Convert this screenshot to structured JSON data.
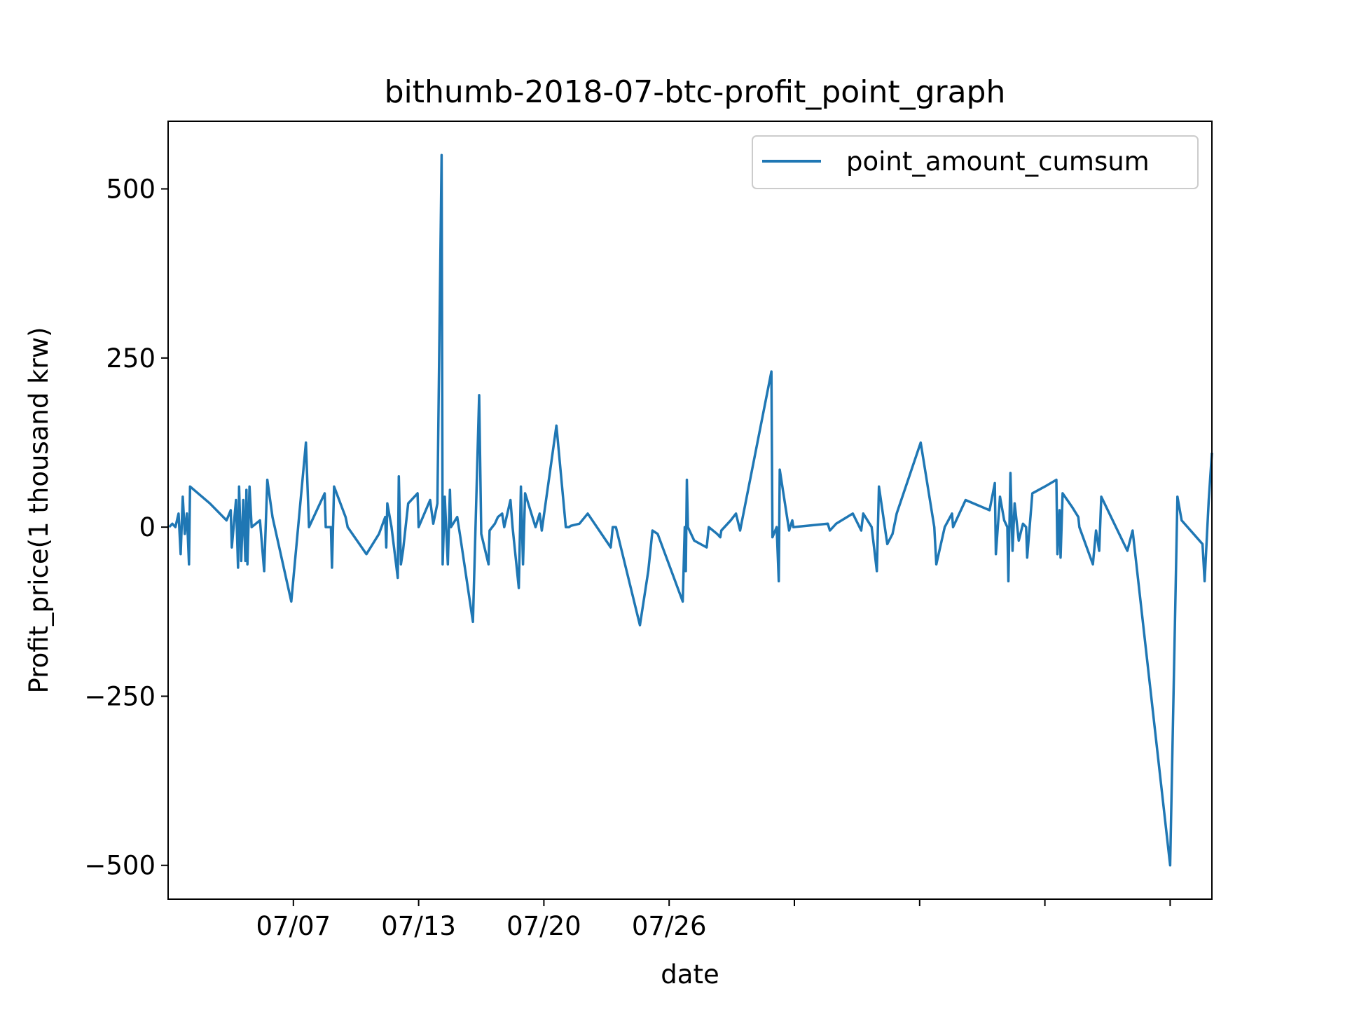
{
  "chart_data": {
    "type": "line",
    "title": "bithumb-2018-07-btc-profit_point_graph",
    "xlabel": "date",
    "ylabel": "Profit_price(1 thousand krw)",
    "x_range": [
      1,
      51
    ],
    "ylim": [
      -550,
      600
    ],
    "x_ticks": [
      {
        "x": 7,
        "label": "07/07"
      },
      {
        "x": 13,
        "label": "07/13"
      },
      {
        "x": 19,
        "label": "07/20"
      },
      {
        "x": 25,
        "label": "07/26"
      },
      {
        "x": 31,
        "label": ""
      },
      {
        "x": 37,
        "label": ""
      },
      {
        "x": 43,
        "label": ""
      },
      {
        "x": 49,
        "label": ""
      }
    ],
    "y_ticks": [
      {
        "y": 500,
        "label": "500"
      },
      {
        "y": 250,
        "label": "250"
      },
      {
        "y": 0,
        "label": "0"
      },
      {
        "y": -250,
        "label": "−250"
      },
      {
        "y": -500,
        "label": "−500"
      }
    ],
    "grid": false,
    "legend_position": "top-right",
    "series": [
      {
        "name": "point_amount_cumsum",
        "color": "#1f77b4",
        "points": [
          [
            1.05,
            0
          ],
          [
            1.2,
            5
          ],
          [
            1.35,
            0
          ],
          [
            1.5,
            20
          ],
          [
            1.6,
            -40
          ],
          [
            1.7,
            45
          ],
          [
            1.8,
            -10
          ],
          [
            1.9,
            20
          ],
          [
            2.0,
            -55
          ],
          [
            2.05,
            60
          ],
          [
            3.0,
            35
          ],
          [
            3.8,
            10
          ],
          [
            4.0,
            25
          ],
          [
            4.05,
            -30
          ],
          [
            4.25,
            40
          ],
          [
            4.35,
            -60
          ],
          [
            4.4,
            60
          ],
          [
            4.5,
            -50
          ],
          [
            4.6,
            40
          ],
          [
            4.7,
            -50
          ],
          [
            4.75,
            55
          ],
          [
            4.8,
            -55
          ],
          [
            4.9,
            60
          ],
          [
            5.0,
            0
          ],
          [
            5.4,
            10
          ],
          [
            5.6,
            -65
          ],
          [
            5.75,
            70
          ],
          [
            6.0,
            15
          ],
          [
            6.9,
            -110
          ],
          [
            7.6,
            125
          ],
          [
            7.75,
            0
          ],
          [
            8.5,
            50
          ],
          [
            8.55,
            0
          ],
          [
            8.8,
            0
          ],
          [
            8.85,
            -60
          ],
          [
            8.95,
            60
          ],
          [
            9.5,
            15
          ],
          [
            9.6,
            0
          ],
          [
            10.5,
            -40
          ],
          [
            11.1,
            -10
          ],
          [
            11.4,
            15
          ],
          [
            11.45,
            -30
          ],
          [
            11.5,
            35
          ],
          [
            11.7,
            0
          ],
          [
            12.0,
            -75
          ],
          [
            12.05,
            75
          ],
          [
            12.15,
            -55
          ],
          [
            12.25,
            -35
          ],
          [
            12.5,
            35
          ],
          [
            12.95,
            50
          ],
          [
            13.0,
            0
          ],
          [
            13.55,
            40
          ],
          [
            13.7,
            5
          ],
          [
            13.9,
            35
          ],
          [
            14.1,
            550
          ],
          [
            14.15,
            -55
          ],
          [
            14.25,
            45
          ],
          [
            14.4,
            -55
          ],
          [
            14.5,
            55
          ],
          [
            14.55,
            0
          ],
          [
            14.85,
            15
          ],
          [
            15.0,
            -15
          ],
          [
            15.6,
            -140
          ],
          [
            15.9,
            195
          ],
          [
            16.0,
            -10
          ],
          [
            16.35,
            -55
          ],
          [
            16.4,
            -5
          ],
          [
            16.65,
            5
          ],
          [
            16.8,
            15
          ],
          [
            17.0,
            20
          ],
          [
            17.1,
            0
          ],
          [
            17.4,
            40
          ],
          [
            17.5,
            0
          ],
          [
            17.8,
            -90
          ],
          [
            17.9,
            60
          ],
          [
            18.0,
            -55
          ],
          [
            18.1,
            50
          ],
          [
            18.6,
            0
          ],
          [
            18.8,
            20
          ],
          [
            18.9,
            -5
          ],
          [
            19.6,
            150
          ],
          [
            20.05,
            0
          ],
          [
            20.2,
            0
          ],
          [
            20.3,
            2
          ],
          [
            20.7,
            5
          ],
          [
            21.1,
            20
          ],
          [
            22.2,
            -30
          ],
          [
            22.3,
            0
          ],
          [
            22.45,
            0
          ],
          [
            23.6,
            -145
          ],
          [
            24.0,
            -65
          ],
          [
            24.2,
            -5
          ],
          [
            24.45,
            -10
          ],
          [
            25.65,
            -110
          ],
          [
            25.75,
            0
          ],
          [
            25.8,
            -65
          ],
          [
            25.85,
            70
          ],
          [
            25.9,
            0
          ],
          [
            26.2,
            -20
          ],
          [
            26.8,
            -30
          ],
          [
            26.9,
            0
          ],
          [
            27.3,
            -10
          ],
          [
            27.45,
            -15
          ],
          [
            27.5,
            -5
          ],
          [
            27.95,
            10
          ],
          [
            28.2,
            20
          ],
          [
            28.4,
            -5
          ],
          [
            29.9,
            230
          ],
          [
            29.95,
            -15
          ],
          [
            30.15,
            0
          ],
          [
            30.25,
            -80
          ],
          [
            30.3,
            85
          ],
          [
            30.75,
            -5
          ],
          [
            30.9,
            10
          ],
          [
            30.95,
            0
          ],
          [
            32.6,
            5
          ],
          [
            32.7,
            -5
          ],
          [
            33.0,
            5
          ],
          [
            33.8,
            20
          ],
          [
            34.2,
            -5
          ],
          [
            34.3,
            20
          ],
          [
            34.7,
            0
          ],
          [
            34.95,
            -65
          ],
          [
            35.05,
            60
          ],
          [
            35.45,
            -25
          ],
          [
            35.7,
            -10
          ],
          [
            35.9,
            20
          ],
          [
            37.05,
            125
          ],
          [
            37.7,
            0
          ],
          [
            37.8,
            -55
          ],
          [
            38.2,
            0
          ],
          [
            38.55,
            20
          ],
          [
            38.6,
            0
          ],
          [
            39.2,
            40
          ],
          [
            40.35,
            25
          ],
          [
            40.6,
            65
          ],
          [
            40.65,
            -40
          ],
          [
            40.85,
            45
          ],
          [
            41.05,
            10
          ],
          [
            41.2,
            0
          ],
          [
            41.25,
            -80
          ],
          [
            41.35,
            80
          ],
          [
            41.45,
            -35
          ],
          [
            41.55,
            35
          ],
          [
            41.75,
            -20
          ],
          [
            41.95,
            5
          ],
          [
            42.1,
            0
          ],
          [
            42.15,
            -45
          ],
          [
            42.4,
            50
          ],
          [
            43.0,
            60
          ],
          [
            43.55,
            70
          ],
          [
            43.6,
            -40
          ],
          [
            43.7,
            25
          ],
          [
            43.75,
            -45
          ],
          [
            43.85,
            50
          ],
          [
            44.3,
            30
          ],
          [
            44.6,
            15
          ],
          [
            44.65,
            0
          ],
          [
            45.3,
            -55
          ],
          [
            45.45,
            -5
          ],
          [
            45.6,
            -35
          ],
          [
            45.7,
            45
          ],
          [
            46.95,
            -35
          ],
          [
            47.2,
            -5
          ],
          [
            49.0,
            -500
          ],
          [
            49.35,
            45
          ],
          [
            49.55,
            10
          ],
          [
            50.55,
            -25
          ],
          [
            50.65,
            -80
          ],
          [
            50.85,
            40
          ],
          [
            51.0,
            110
          ]
        ]
      }
    ]
  }
}
